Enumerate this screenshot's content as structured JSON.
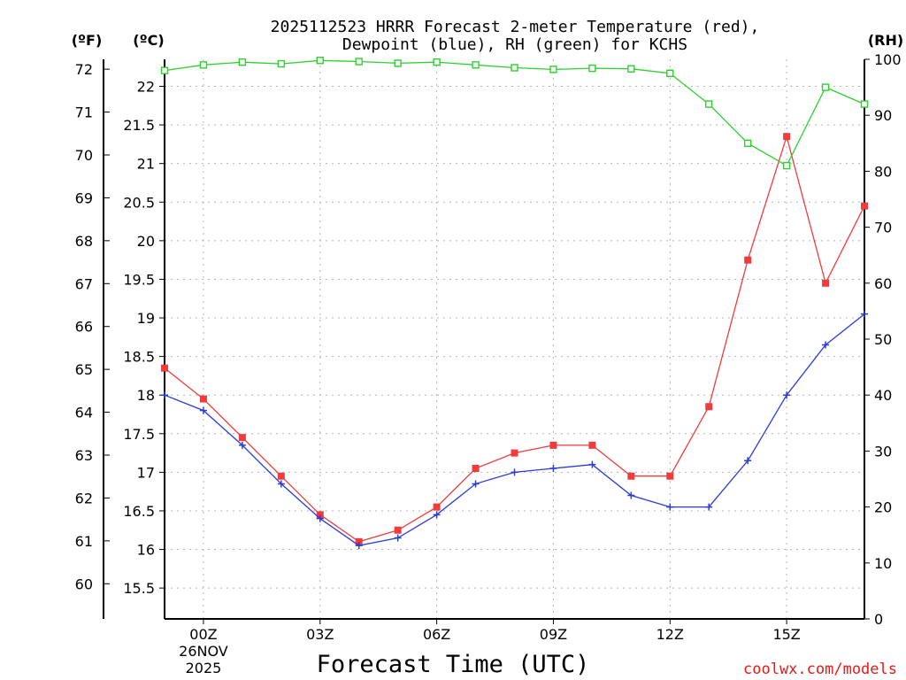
{
  "chart_data": {
    "type": "line",
    "title_line1": "2025112523 HRRR Forecast 2-meter Temperature (red),",
    "title_line2": "Dewpoint (blue), RH (green) for KCHS",
    "xlabel": "Forecast Time (UTC)",
    "watermark": "coolwx.com/models",
    "units": {
      "fahrenheit": "(ºF)",
      "celsius": "(ºC)",
      "rh": "(RH)"
    },
    "x": [
      23,
      24,
      25,
      26,
      27,
      28,
      29,
      30,
      31,
      32,
      33,
      34,
      35,
      36,
      37,
      38,
      39,
      40,
      41
    ],
    "xlim": [
      23,
      41
    ],
    "x_ticks": [
      {
        "x": 24,
        "label": "00Z",
        "sub1": "26NOV",
        "sub2": "2025"
      },
      {
        "x": 27,
        "label": "03Z",
        "sub1": "",
        "sub2": ""
      },
      {
        "x": 30,
        "label": "06Z",
        "sub1": "",
        "sub2": ""
      },
      {
        "x": 33,
        "label": "09Z",
        "sub1": "",
        "sub2": ""
      },
      {
        "x": 36,
        "label": "12Z",
        "sub1": "",
        "sub2": ""
      },
      {
        "x": 39,
        "label": "15Z",
        "sub1": "",
        "sub2": ""
      }
    ],
    "celsius_axis": {
      "ylim": [
        15.1,
        22.35
      ],
      "ticks": [
        "15.5",
        "16",
        "16.5",
        "17",
        "17.5",
        "18",
        "18.5",
        "19",
        "19.5",
        "20",
        "20.5",
        "21",
        "21.5",
        "22"
      ]
    },
    "fahrenheit_axis": {
      "ticks": [
        "60",
        "61",
        "62",
        "63",
        "64",
        "65",
        "66",
        "67",
        "68",
        "69",
        "70",
        "71",
        "72"
      ]
    },
    "rh_axis": {
      "ylim": [
        0,
        100
      ],
      "ticks": [
        "0",
        "10",
        "20",
        "30",
        "40",
        "50",
        "60",
        "70",
        "80",
        "90",
        "100"
      ]
    },
    "series": [
      {
        "name": "Temperature",
        "color": "#f03c3c",
        "marker": "square",
        "axis": "celsius",
        "values": [
          18.35,
          17.95,
          17.45,
          16.95,
          16.45,
          16.1,
          16.25,
          16.55,
          17.05,
          17.25,
          17.35,
          17.35,
          16.95,
          16.95,
          17.85,
          19.75,
          21.35,
          19.45,
          20.45
        ]
      },
      {
        "name": "Dewpoint",
        "color": "#2a3adc",
        "marker": "plus",
        "axis": "celsius",
        "values": [
          18.0,
          17.8,
          17.35,
          16.85,
          16.4,
          16.05,
          16.15,
          16.45,
          16.85,
          17.0,
          17.05,
          17.1,
          16.7,
          16.55,
          16.55,
          17.15,
          18.0,
          18.65,
          19.05
        ]
      },
      {
        "name": "RH",
        "color": "#2ed02e",
        "marker": "open-square",
        "axis": "rh",
        "values": [
          98,
          99,
          99.5,
          99.2,
          99.8,
          99.6,
          99.3,
          99.5,
          99.0,
          98.5,
          98.2,
          98.4,
          98.3,
          97.5,
          92,
          85,
          81,
          95,
          92
        ]
      }
    ]
  }
}
